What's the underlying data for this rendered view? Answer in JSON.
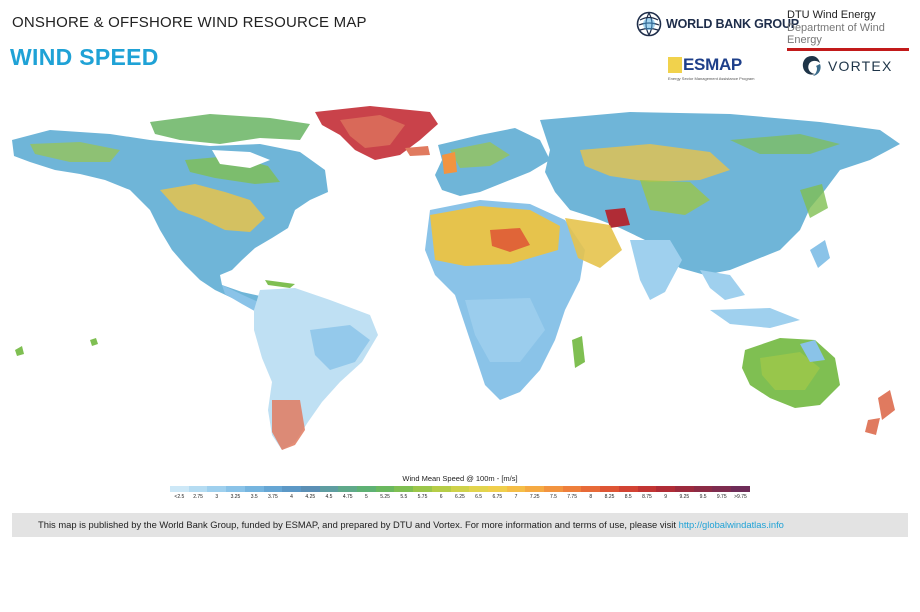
{
  "header": {
    "subtitle": "ONSHORE & OFFSHORE WIND RESOURCE MAP",
    "title": "WIND SPEED"
  },
  "logos": {
    "world_bank": "WORLD BANK GROUP",
    "dtu_line1": "DTU Wind Energy",
    "dtu_line2": "Department of Wind Energy",
    "esmap": "ESMAP",
    "esmap_sub": "Energy Sector Management Assistance Program",
    "vortex": "VORTEX"
  },
  "legend": {
    "title": "Wind Mean Speed @ 100m - [m/s]",
    "ticks": [
      "<2.5",
      "2.75",
      "3",
      "3.25",
      "3.5",
      "3.75",
      "4",
      "4.25",
      "4.5",
      "4.75",
      "5",
      "5.25",
      "5.5",
      "5.75",
      "6",
      "6.25",
      "6.5",
      "6.75",
      "7",
      "7.25",
      "7.5",
      "7.75",
      "8",
      "8.25",
      "8.5",
      "8.75",
      "9",
      "9.25",
      "9.5",
      "9.75",
      ">9.75"
    ],
    "colors": [
      "#cde8f7",
      "#b5dcf2",
      "#9fd0ee",
      "#8ac3e8",
      "#76b5df",
      "#66a6d4",
      "#5c98c6",
      "#5b8fb5",
      "#5e9da1",
      "#5fa98a",
      "#5eb174",
      "#6ab85f",
      "#7fbf52",
      "#9bc64a",
      "#b6cd47",
      "#cfd24a",
      "#e2d44d",
      "#f0cf4c",
      "#f5be47",
      "#f5aa43",
      "#f29440",
      "#ee7f3c",
      "#e76a38",
      "#de5535",
      "#d24333",
      "#c23533",
      "#b02c36",
      "#9c2a3d",
      "#8c2b45",
      "#7e2c4f",
      "#6e2c58"
    ]
  },
  "footer": {
    "text": "This  map is published by the World Bank Group, funded by ESMAP, and prepared by DTU and Vortex. For more information and terms of use, please visit",
    "link": "http://globalwindatlas.info"
  },
  "icons": {
    "world_bank_logo": "globe-icon",
    "vortex_logo": "vortex-swirl-icon"
  }
}
